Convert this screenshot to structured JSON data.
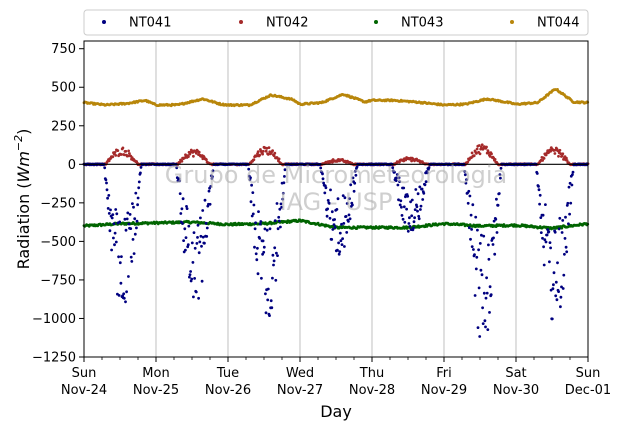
{
  "chart_data": {
    "type": "scatter",
    "title": "",
    "xlabel": "Day",
    "ylabel_main": "Radiation (",
    "ylabel_unit": "Wm",
    "ylabel_exp": "−2",
    "ylabel_close": ")",
    "ylim": [
      -1250,
      800
    ],
    "yticks": [
      -1250,
      -1000,
      -750,
      -500,
      -250,
      0,
      250,
      500,
      750
    ],
    "xlim_days": [
      0,
      7
    ],
    "xticks": [
      {
        "day": 0,
        "weekday": "Sun",
        "date": "Nov-24"
      },
      {
        "day": 1,
        "weekday": "Mon",
        "date": "Nov-25"
      },
      {
        "day": 2,
        "weekday": "Tue",
        "date": "Nov-26"
      },
      {
        "day": 3,
        "weekday": "Wed",
        "date": "Nov-27"
      },
      {
        "day": 4,
        "weekday": "Thu",
        "date": "Nov-28"
      },
      {
        "day": 5,
        "weekday": "Fri",
        "date": "Nov-29"
      },
      {
        "day": 6,
        "weekday": "Sat",
        "date": "Nov-30"
      },
      {
        "day": 7,
        "weekday": "Sun",
        "date": "Dec-01"
      }
    ],
    "grid": "vertical",
    "zero_line": true,
    "legend_position": "top, outside, single row",
    "watermark": [
      "Grupo de Micrometeorologia",
      "IAG - USP"
    ],
    "series": [
      {
        "name": "NT041",
        "color": "#000080",
        "pattern": "daytime negative dips",
        "minima": [
          -960,
          -880,
          -1030,
          -600,
          -440,
          -1120,
          -1040
        ]
      },
      {
        "name": "NT042",
        "color": "#a52a2a",
        "pattern": "near zero with daytime bumps",
        "peaks": [
          100,
          90,
          110,
          30,
          40,
          120,
          100
        ]
      },
      {
        "name": "NT043",
        "color": "#006400",
        "pattern": "nearly flat",
        "values_x": [
          0,
          0.5,
          1,
          1.5,
          2,
          2.5,
          3,
          3.5,
          4,
          4.5,
          5,
          5.5,
          6,
          6.5,
          7
        ],
        "values_y": [
          -400,
          -385,
          -380,
          -375,
          -390,
          -385,
          -365,
          -410,
          -410,
          -410,
          -385,
          -400,
          -395,
          -415,
          -385
        ]
      },
      {
        "name": "NT044",
        "color": "#b8860b",
        "pattern": "nearly flat with daytime bumps",
        "values_x": [
          0,
          0.3,
          0.6,
          0.85,
          1,
          1.3,
          1.65,
          1.9,
          2,
          2.3,
          2.6,
          2.9,
          3,
          3.3,
          3.6,
          3.9,
          4,
          4.3,
          4.6,
          4.9,
          5,
          5.3,
          5.6,
          5.9,
          6,
          6.3,
          6.55,
          6.8,
          7
        ],
        "values_y": [
          400,
          385,
          395,
          415,
          385,
          385,
          425,
          390,
          385,
          385,
          450,
          420,
          390,
          400,
          455,
          405,
          415,
          415,
          405,
          390,
          385,
          390,
          425,
          400,
          390,
          400,
          490,
          405,
          400
        ]
      }
    ]
  }
}
